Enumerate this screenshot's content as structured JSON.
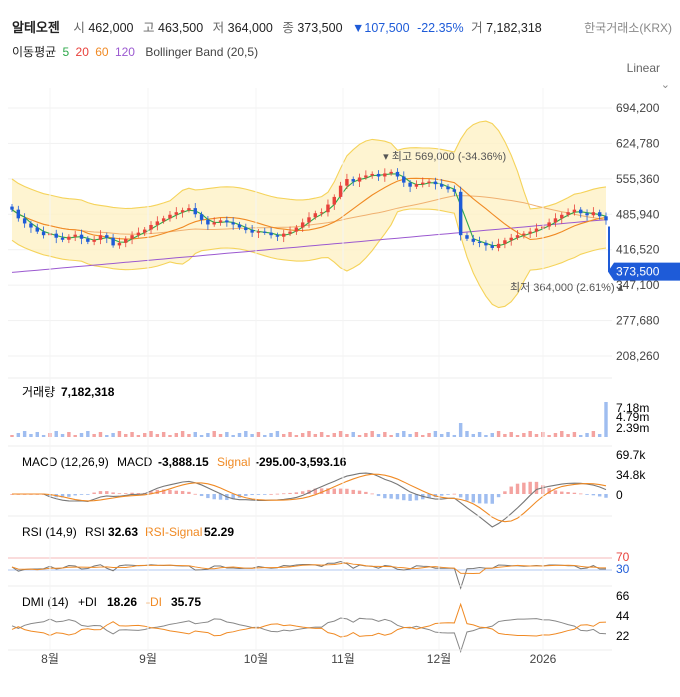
{
  "header": {
    "name": "알테오젠",
    "open_label": "시",
    "open": "462,000",
    "high_label": "고",
    "high": "463,500",
    "low_label": "저",
    "low": "364,000",
    "close_label": "종",
    "close": "373,500",
    "change": "▼107,500",
    "change_pct": "-22.35%",
    "volume_label": "거",
    "volume": "7,182,318",
    "exchange": "한국거래소(KRX)"
  },
  "ma": {
    "label": "이동평균",
    "periods": [
      "5",
      "20",
      "60",
      "120"
    ],
    "colors": [
      "#2ea84a",
      "#e8413b",
      "#f08a24",
      "#9b59d0"
    ],
    "bollinger": "Bollinger Band (20,5)"
  },
  "scale_mode": "Linear",
  "colors": {
    "up": "#e8413b",
    "down": "#1e5bd8",
    "band": "#fde9a8",
    "band_line": "#f5d35a"
  },
  "chart_data": [
    {
      "type": "candlestick",
      "title": "",
      "y_ticks": [
        "694,200",
        "624,780",
        "555,360",
        "485,940",
        "416,520",
        "347,100",
        "277,680",
        "208,260"
      ],
      "ylim": [
        208260,
        694200
      ],
      "x_ticks": [
        "8월",
        "9월",
        "10월",
        "11월",
        "12월",
        "2026"
      ],
      "current_price": "373,500",
      "annotations": [
        {
          "text": "최고 569,000 (-34.36%)",
          "value": 569000
        },
        {
          "text": "최저 364,000 (2.61%)",
          "value": 364000
        }
      ],
      "close_series": [
        495,
        478,
        468,
        460,
        452,
        445,
        448,
        440,
        436,
        442,
        446,
        438,
        432,
        436,
        445,
        440,
        425,
        430,
        438,
        445,
        450,
        456,
        465,
        472,
        478,
        485,
        490,
        494,
        498,
        486,
        475,
        466,
        470,
        474,
        470,
        466,
        460,
        455,
        450,
        452,
        450,
        445,
        442,
        448,
        452,
        460,
        470,
        480,
        488,
        490,
        505,
        520,
        542,
        555,
        550,
        558,
        562,
        565,
        560,
        566,
        569,
        560,
        548,
        540,
        545,
        548,
        550,
        545,
        540,
        535,
        530,
        445,
        438,
        432,
        430,
        425,
        420,
        428,
        435,
        440,
        445,
        448,
        452,
        458,
        462,
        470,
        478,
        485,
        490,
        495,
        488,
        484,
        490,
        482,
        474
      ]
    },
    {
      "type": "bar",
      "title": "거래량",
      "value_text": "7,182,318",
      "y_ticks": [
        "7.18m",
        "4.79m",
        "2.39m"
      ]
    },
    {
      "type": "line",
      "title": "MACD (12,26,9)",
      "series": [
        {
          "name": "MACD",
          "value": "-3,888.15"
        },
        {
          "name": "Signal",
          "value": "-295.00-3,593.16"
        }
      ],
      "y_ticks": [
        "69.7k",
        "34.8k",
        "0"
      ]
    },
    {
      "type": "line",
      "title": "RSI (14,9)",
      "series": [
        {
          "name": "RSI",
          "value": "32.63"
        },
        {
          "name": "RSI-Signal",
          "value": "52.29"
        }
      ],
      "y_ticks": [
        "70",
        "30"
      ]
    },
    {
      "type": "line",
      "title": "DMI (14)",
      "series": [
        {
          "name": "+DI",
          "value": "18.26"
        },
        {
          "name": "-DI",
          "value": "35.75"
        }
      ],
      "y_ticks": [
        "66",
        "44",
        "22"
      ]
    }
  ]
}
